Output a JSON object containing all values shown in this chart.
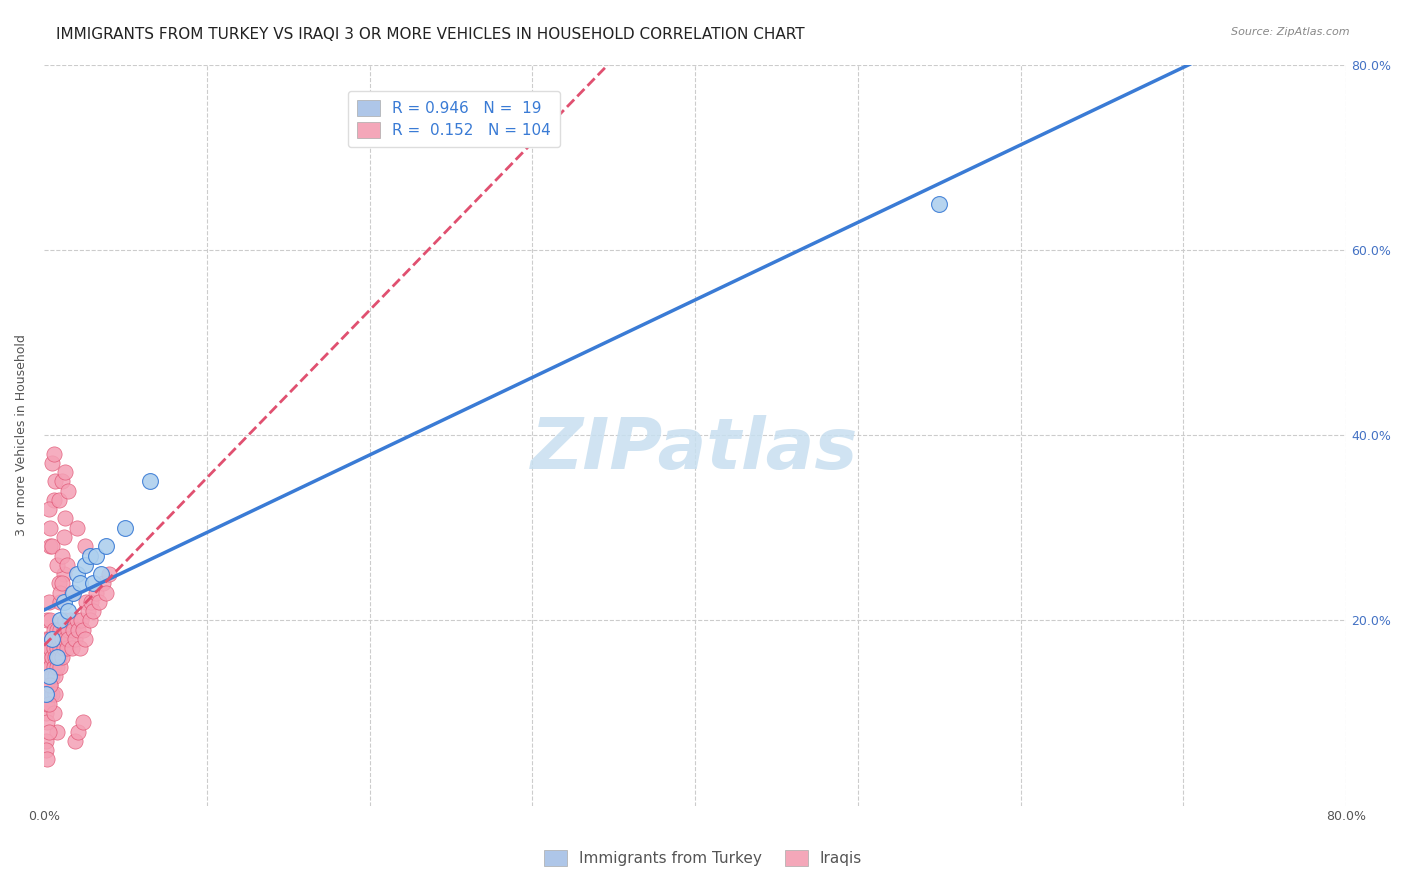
{
  "title": "IMMIGRANTS FROM TURKEY VS IRAQI 3 OR MORE VEHICLES IN HOUSEHOLD CORRELATION CHART",
  "source": "Source: ZipAtlas.com",
  "ylabel": "3 or more Vehicles in Household",
  "xlim": [
    0,
    0.8
  ],
  "ylim": [
    0,
    0.8
  ],
  "legend_entries": [
    {
      "label": "Immigrants from Turkey",
      "color": "#aec6e8",
      "R": 0.946,
      "N": 19
    },
    {
      "label": "Iraqis",
      "color": "#f4a7b9",
      "R": 0.152,
      "N": 104
    }
  ],
  "turkey_line_color": "#3a7bd5",
  "iraq_line_color": "#e05070",
  "turkey_marker_color": "#aed0ee",
  "iraq_marker_color": "#f4a0b5",
  "background_color": "#ffffff",
  "grid_color": "#cccccc",
  "watermark": "ZIPatlas",
  "watermark_color": "#c8dff0",
  "title_fontsize": 11,
  "axis_label_fontsize": 9,
  "tick_fontsize": 9,
  "legend_fontsize": 11,
  "turkey_scatter_x": [
    0.001,
    0.003,
    0.005,
    0.008,
    0.01,
    0.012,
    0.015,
    0.018,
    0.02,
    0.022,
    0.025,
    0.028,
    0.03,
    0.032,
    0.035,
    0.038,
    0.05,
    0.065,
    0.55
  ],
  "turkey_scatter_y": [
    0.12,
    0.14,
    0.18,
    0.16,
    0.2,
    0.22,
    0.21,
    0.23,
    0.25,
    0.24,
    0.26,
    0.27,
    0.24,
    0.27,
    0.25,
    0.28,
    0.3,
    0.35,
    0.65
  ],
  "iraq_scatter_x": [
    0.001,
    0.001,
    0.001,
    0.001,
    0.001,
    0.002,
    0.002,
    0.002,
    0.002,
    0.002,
    0.003,
    0.003,
    0.003,
    0.003,
    0.003,
    0.004,
    0.004,
    0.004,
    0.004,
    0.005,
    0.005,
    0.005,
    0.005,
    0.006,
    0.006,
    0.006,
    0.007,
    0.007,
    0.007,
    0.008,
    0.008,
    0.008,
    0.009,
    0.009,
    0.01,
    0.01,
    0.01,
    0.011,
    0.011,
    0.012,
    0.012,
    0.013,
    0.013,
    0.014,
    0.015,
    0.015,
    0.016,
    0.017,
    0.018,
    0.019,
    0.02,
    0.021,
    0.022,
    0.023,
    0.024,
    0.025,
    0.026,
    0.027,
    0.028,
    0.029,
    0.03,
    0.032,
    0.034,
    0.036,
    0.038,
    0.04,
    0.012,
    0.01,
    0.008,
    0.006,
    0.005,
    0.004,
    0.003,
    0.002,
    0.001,
    0.001,
    0.002,
    0.003,
    0.004,
    0.005,
    0.006,
    0.007,
    0.008,
    0.009,
    0.01,
    0.011,
    0.012,
    0.013,
    0.007,
    0.006,
    0.009,
    0.011,
    0.013,
    0.015,
    0.02,
    0.025,
    0.003,
    0.004,
    0.014,
    0.011,
    0.017,
    0.019,
    0.021,
    0.024
  ],
  "iraq_scatter_y": [
    0.14,
    0.16,
    0.12,
    0.18,
    0.1,
    0.15,
    0.17,
    0.13,
    0.2,
    0.11,
    0.16,
    0.14,
    0.18,
    0.12,
    0.22,
    0.15,
    0.17,
    0.13,
    0.2,
    0.16,
    0.14,
    0.18,
    0.12,
    0.17,
    0.15,
    0.19,
    0.16,
    0.14,
    0.18,
    0.17,
    0.15,
    0.19,
    0.16,
    0.18,
    0.17,
    0.15,
    0.19,
    0.16,
    0.18,
    0.17,
    0.19,
    0.18,
    0.2,
    0.17,
    0.19,
    0.18,
    0.2,
    0.17,
    0.19,
    0.18,
    0.2,
    0.19,
    0.17,
    0.2,
    0.19,
    0.18,
    0.22,
    0.21,
    0.2,
    0.22,
    0.21,
    0.23,
    0.22,
    0.24,
    0.23,
    0.25,
    0.25,
    0.22,
    0.08,
    0.33,
    0.37,
    0.28,
    0.32,
    0.09,
    0.07,
    0.06,
    0.05,
    0.08,
    0.3,
    0.28,
    0.1,
    0.12,
    0.26,
    0.24,
    0.23,
    0.27,
    0.29,
    0.31,
    0.35,
    0.38,
    0.33,
    0.35,
    0.36,
    0.34,
    0.3,
    0.28,
    0.11,
    0.13,
    0.26,
    0.24,
    0.23,
    0.07,
    0.08,
    0.09
  ]
}
